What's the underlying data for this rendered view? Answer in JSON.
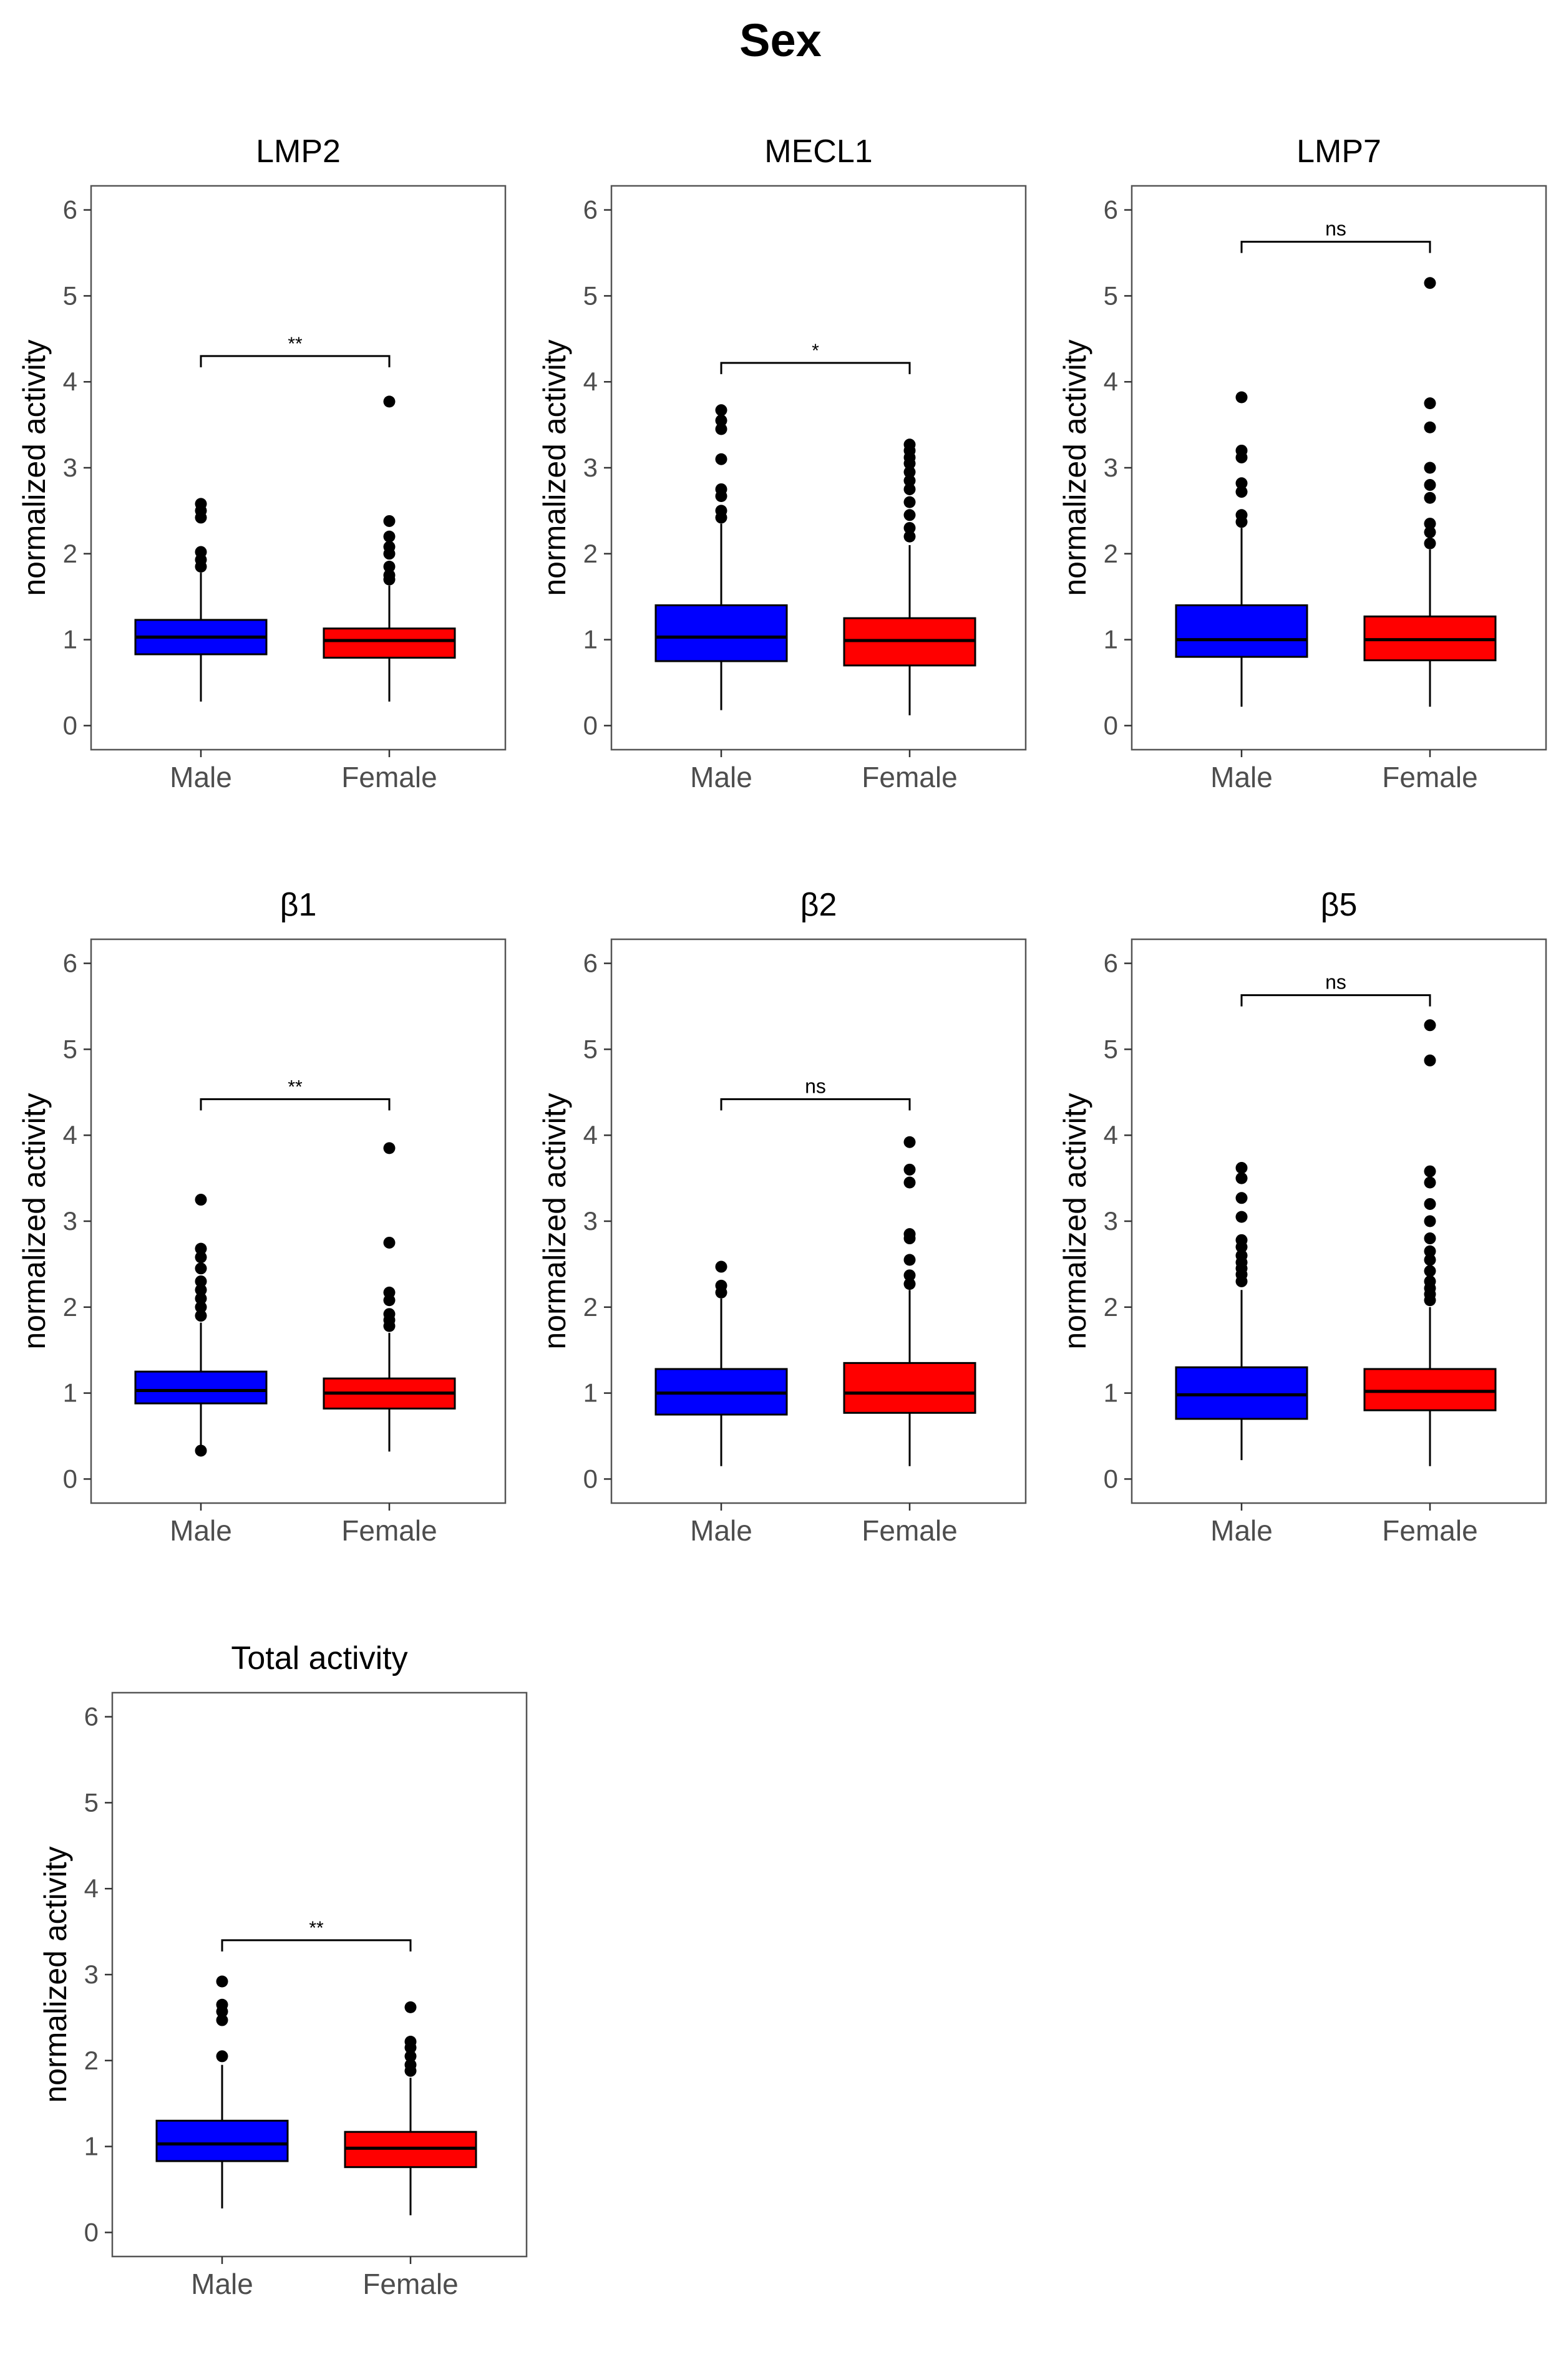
{
  "figure_title": "Sex",
  "chart_data": [
    {
      "type": "box",
      "title": "LMP2",
      "ylabel": "normalized activity",
      "ylim": [
        -0.28,
        6.28
      ],
      "yticks": [
        0,
        1,
        2,
        3,
        4,
        5,
        6
      ],
      "categories": [
        "Male",
        "Female"
      ],
      "colors": [
        "#0000ff",
        "#ff0000"
      ],
      "boxes": [
        {
          "q1": 0.83,
          "median": 1.03,
          "q3": 1.23,
          "whisker_low": 0.28,
          "whisker_high": 1.78,
          "outliers": [
            1.85,
            1.93,
            2.02,
            2.42,
            2.5,
            2.58
          ]
        },
        {
          "q1": 0.79,
          "median": 0.99,
          "q3": 1.13,
          "whisker_low": 0.28,
          "whisker_high": 1.63,
          "outliers": [
            1.7,
            1.75,
            1.85,
            2.0,
            2.08,
            2.2,
            2.38,
            3.77
          ]
        }
      ],
      "significance": {
        "label": "**",
        "y": 4.3
      }
    },
    {
      "type": "box",
      "title": "MECL1",
      "ylabel": "normalized activity",
      "ylim": [
        -0.28,
        6.28
      ],
      "yticks": [
        0,
        1,
        2,
        3,
        4,
        5,
        6
      ],
      "categories": [
        "Male",
        "Female"
      ],
      "colors": [
        "#0000ff",
        "#ff0000"
      ],
      "boxes": [
        {
          "q1": 0.75,
          "median": 1.03,
          "q3": 1.4,
          "whisker_low": 0.18,
          "whisker_high": 2.35,
          "outliers": [
            2.42,
            2.5,
            2.67,
            2.75,
            3.1,
            3.45,
            3.55,
            3.67
          ]
        },
        {
          "q1": 0.7,
          "median": 0.99,
          "q3": 1.25,
          "whisker_low": 0.12,
          "whisker_high": 2.1,
          "outliers": [
            2.2,
            2.3,
            2.45,
            2.6,
            2.75,
            2.85,
            2.95,
            3.05,
            3.12,
            3.2,
            3.27
          ]
        }
      ],
      "significance": {
        "label": "*",
        "y": 4.22
      }
    },
    {
      "type": "box",
      "title": "LMP7",
      "ylabel": "normalized activity",
      "ylim": [
        -0.28,
        6.28
      ],
      "yticks": [
        0,
        1,
        2,
        3,
        4,
        5,
        6
      ],
      "categories": [
        "Male",
        "Female"
      ],
      "colors": [
        "#0000ff",
        "#ff0000"
      ],
      "boxes": [
        {
          "q1": 0.8,
          "median": 1.0,
          "q3": 1.4,
          "whisker_low": 0.22,
          "whisker_high": 2.3,
          "outliers": [
            2.37,
            2.45,
            2.72,
            2.82,
            3.12,
            3.2,
            3.82
          ]
        },
        {
          "q1": 0.76,
          "median": 1.0,
          "q3": 1.27,
          "whisker_low": 0.22,
          "whisker_high": 2.05,
          "outliers": [
            2.12,
            2.25,
            2.35,
            2.65,
            2.8,
            3.0,
            3.47,
            3.75,
            5.15
          ]
        }
      ],
      "significance": {
        "label": "ns",
        "y": 5.63
      }
    },
    {
      "type": "box",
      "title": "β1",
      "ylabel": "normalized activity",
      "ylim": [
        -0.28,
        6.28
      ],
      "yticks": [
        0,
        1,
        2,
        3,
        4,
        5,
        6
      ],
      "categories": [
        "Male",
        "Female"
      ],
      "colors": [
        "#0000ff",
        "#ff0000"
      ],
      "boxes": [
        {
          "q1": 0.88,
          "median": 1.03,
          "q3": 1.25,
          "whisker_low": 0.35,
          "whisker_high": 1.82,
          "outliers": [
            0.33,
            1.9,
            2.0,
            2.1,
            2.2,
            2.3,
            2.45,
            2.58,
            2.68,
            3.25
          ]
        },
        {
          "q1": 0.82,
          "median": 1.0,
          "q3": 1.17,
          "whisker_low": 0.32,
          "whisker_high": 1.7,
          "outliers": [
            1.78,
            1.85,
            1.92,
            2.08,
            2.17,
            2.75,
            3.85
          ]
        }
      ],
      "significance": {
        "label": "**",
        "y": 4.42
      }
    },
    {
      "type": "box",
      "title": "β2",
      "ylabel": "normalized activity",
      "ylim": [
        -0.28,
        6.28
      ],
      "yticks": [
        0,
        1,
        2,
        3,
        4,
        5,
        6
      ],
      "categories": [
        "Male",
        "Female"
      ],
      "colors": [
        "#0000ff",
        "#ff0000"
      ],
      "boxes": [
        {
          "q1": 0.75,
          "median": 1.0,
          "q3": 1.28,
          "whisker_low": 0.15,
          "whisker_high": 2.1,
          "outliers": [
            2.17,
            2.25,
            2.47
          ]
        },
        {
          "q1": 0.77,
          "median": 1.0,
          "q3": 1.35,
          "whisker_low": 0.15,
          "whisker_high": 2.2,
          "outliers": [
            2.27,
            2.37,
            2.55,
            2.8,
            2.85,
            3.45,
            3.6,
            3.92
          ]
        }
      ],
      "significance": {
        "label": "ns",
        "y": 4.42
      }
    },
    {
      "type": "box",
      "title": "β5",
      "ylabel": "normalized activity",
      "ylim": [
        -0.28,
        6.28
      ],
      "yticks": [
        0,
        1,
        2,
        3,
        4,
        5,
        6
      ],
      "categories": [
        "Male",
        "Female"
      ],
      "colors": [
        "#0000ff",
        "#ff0000"
      ],
      "boxes": [
        {
          "q1": 0.7,
          "median": 0.98,
          "q3": 1.3,
          "whisker_low": 0.22,
          "whisker_high": 2.2,
          "outliers": [
            2.3,
            2.38,
            2.45,
            2.52,
            2.6,
            2.7,
            2.78,
            3.05,
            3.27,
            3.5,
            3.62
          ]
        },
        {
          "q1": 0.8,
          "median": 1.02,
          "q3": 1.28,
          "whisker_low": 0.15,
          "whisker_high": 2.0,
          "outliers": [
            2.08,
            2.15,
            2.22,
            2.3,
            2.42,
            2.55,
            2.65,
            2.8,
            3.0,
            3.2,
            3.45,
            3.58,
            4.87,
            5.28
          ]
        }
      ],
      "significance": {
        "label": "ns",
        "y": 5.63
      }
    },
    {
      "type": "box",
      "title": "Total activity",
      "ylabel": "normalized activity",
      "ylim": [
        -0.28,
        6.28
      ],
      "yticks": [
        0,
        1,
        2,
        3,
        4,
        5,
        6
      ],
      "categories": [
        "Male",
        "Female"
      ],
      "colors": [
        "#0000ff",
        "#ff0000"
      ],
      "boxes": [
        {
          "q1": 0.83,
          "median": 1.03,
          "q3": 1.3,
          "whisker_low": 0.28,
          "whisker_high": 1.95,
          "outliers": [
            2.05,
            2.47,
            2.57,
            2.65,
            2.92
          ]
        },
        {
          "q1": 0.76,
          "median": 0.98,
          "q3": 1.17,
          "whisker_low": 0.2,
          "whisker_high": 1.8,
          "outliers": [
            1.88,
            1.95,
            2.05,
            2.15,
            2.22,
            2.62
          ]
        }
      ],
      "significance": {
        "label": "**",
        "y": 3.4
      }
    }
  ]
}
